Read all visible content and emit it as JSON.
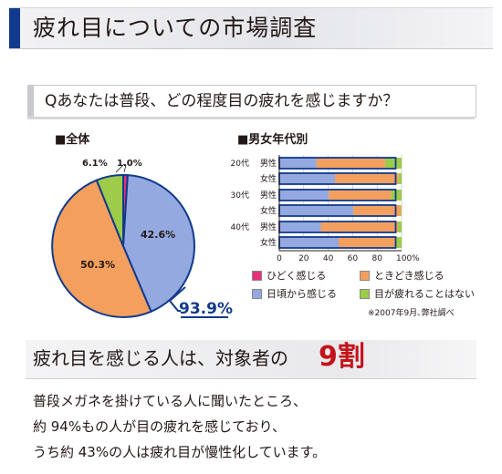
{
  "title": "疲れ目についての市場調査",
  "question": "Qあなたは普段、どの程度目の疲れを感じますか？",
  "overall_label": "■全体",
  "by_age_label": "■男女年代別",
  "colors": {
    "hidoku": "#e8307a",
    "tokidoki": "#f3a05e",
    "higoro": "#93a9e0",
    "nai": "#9ccc4a",
    "accent_blue": "#123a8c",
    "accent_red": "#c4121a"
  },
  "chart_data": [
    {
      "type": "pie",
      "title": "■全体",
      "slices": [
        {
          "key": "hidoku",
          "label": "ひどく感じる",
          "value": 1.0,
          "value_label": "1.0%"
        },
        {
          "key": "higoro",
          "label": "日頃から感じる",
          "value": 42.6,
          "value_label": "42.6%"
        },
        {
          "key": "tokidoki",
          "label": "ときどき感じる",
          "value": 50.3,
          "value_label": "50.3%"
        },
        {
          "key": "nai",
          "label": "目が疲れることはない",
          "value": 6.1,
          "value_label": "6.1%"
        }
      ],
      "total_highlight": "93.9%"
    },
    {
      "type": "bar",
      "orientation": "horizontal",
      "stacked": true,
      "title": "■男女年代別",
      "xlim": [
        0,
        100
      ],
      "x_ticks": [
        "0",
        "20",
        "40",
        "60",
        "80",
        "100%"
      ],
      "groups": [
        "20代",
        "30代",
        "40代"
      ],
      "categories": [
        "男性",
        "女性",
        "男性",
        "女性",
        "男性",
        "女性"
      ],
      "series": [
        {
          "key": "hidoku",
          "name": "ひどく感じる",
          "values": [
            0.5,
            0.5,
            0.5,
            0.5,
            1,
            0.5
          ]
        },
        {
          "key": "higoro",
          "name": "日頃から感じる",
          "values": [
            30,
            45,
            40,
            60,
            33,
            48
          ]
        },
        {
          "key": "tokidoki",
          "name": "ときどき感じる",
          "values": [
            56,
            52,
            51,
            39,
            63,
            47
          ]
        },
        {
          "key": "nai",
          "name": "目が疲れることはない",
          "values": [
            13.5,
            2.5,
            8.5,
            0.5,
            3,
            4.5
          ]
        }
      ]
    }
  ],
  "legend": [
    {
      "key": "hidoku",
      "label": "ひどく感じる"
    },
    {
      "key": "tokidoki",
      "label": "ときどき感じる"
    },
    {
      "key": "higoro",
      "label": "日頃から感じる"
    },
    {
      "key": "nai",
      "label": "目が疲れることはない"
    }
  ],
  "source_note": "※2007年9月､弊社調べ",
  "conclusion": {
    "pre": "疲れ目を感じる人は、対象者の",
    "emph": "9割"
  },
  "body_lines": [
    "普段メガネを掛けている人に聞いたところ、",
    "約 94%もの人が目の疲れを感じており、",
    "うち約 43%の人は疲れ目が慢性化しています。"
  ]
}
